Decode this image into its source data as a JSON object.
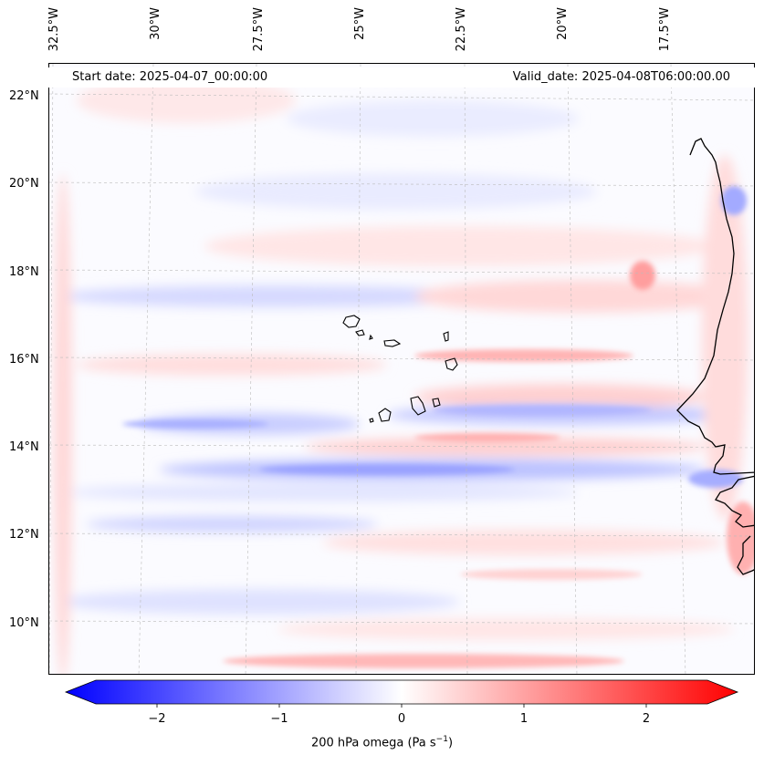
{
  "header": {
    "start_date": "Start date: 2025-04-07_00:00:00",
    "valid_date": "Valid_date: 2025-04-08T06:00:00.00"
  },
  "longitude_labels": [
    "32.5°W",
    "30°W",
    "27.5°W",
    "25°W",
    "22.5°W",
    "20°W",
    "17.5°W"
  ],
  "latitude_labels": [
    "22°N",
    "20°N",
    "18°N",
    "16°N",
    "14°N",
    "12°N",
    "10°N"
  ],
  "colorbar": {
    "label": "200 hPa omega (Pa s",
    "label_sup": "−1",
    "label_end": ")",
    "ticks": [
      "−2",
      "−1",
      "0",
      "1",
      "2"
    ],
    "tick_values": [
      -2,
      -1,
      0,
      1,
      2
    ],
    "range": [
      -2.6,
      2.6
    ],
    "colors": {
      "negative": "#0000ff",
      "zero": "#ffffff",
      "positive": "#ff0000"
    }
  },
  "colors": {
    "coastline": "#000000",
    "gridline": "#bbbbbb"
  }
}
